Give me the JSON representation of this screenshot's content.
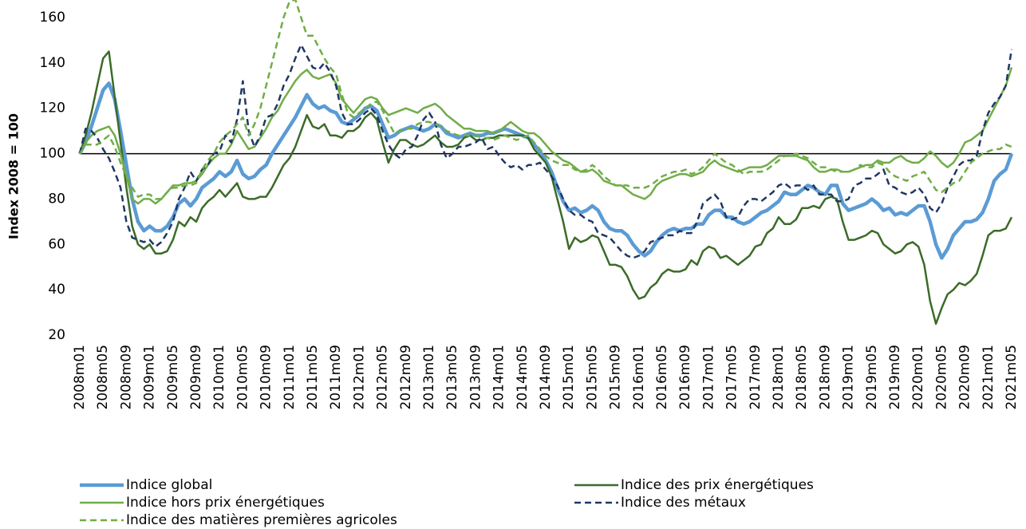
{
  "chart_data": {
    "type": "line",
    "y_label": "Index 2008 = 100",
    "categories": [
      "2008m01",
      null,
      null,
      null,
      "2008m05",
      null,
      null,
      null,
      "2008m09",
      null,
      null,
      null,
      "2009m01",
      null,
      null,
      null,
      "2009m05",
      null,
      null,
      null,
      "2009m09",
      null,
      null,
      null,
      "2010m01",
      null,
      null,
      null,
      "2010m05",
      null,
      null,
      null,
      "2010m09",
      null,
      null,
      null,
      "2011m01",
      null,
      null,
      null,
      "2011m05",
      null,
      null,
      null,
      "2011m09",
      null,
      null,
      null,
      "2012m01",
      null,
      null,
      null,
      "2012m05",
      null,
      null,
      null,
      "2012m09",
      null,
      null,
      null,
      "2013m01",
      null,
      null,
      null,
      "2013m05",
      null,
      null,
      null,
      "2013m09",
      null,
      null,
      null,
      "2014m01",
      null,
      null,
      null,
      "2014m05",
      null,
      null,
      null,
      "2014m09",
      null,
      null,
      null,
      "2015m01",
      null,
      null,
      null,
      "2015m05",
      null,
      null,
      null,
      "2015m09",
      null,
      null,
      null,
      "2016m01",
      null,
      null,
      null,
      "2016m05",
      null,
      null,
      null,
      "2016m09",
      null,
      null,
      null,
      "2017m01",
      null,
      null,
      null,
      "2017m05",
      null,
      null,
      null,
      "2017m09",
      null,
      null,
      null,
      "2018m01",
      null,
      null,
      null,
      "2018m05",
      null,
      null,
      null,
      "2018m09",
      null,
      null,
      null,
      "2019m01",
      null,
      null,
      null,
      "2019m05",
      null,
      null,
      null,
      "2019m09",
      null,
      null,
      null,
      "2020m01",
      null,
      null,
      null,
      "2020m05",
      null,
      null,
      null,
      "2020m09",
      null,
      null,
      null,
      "2021m01",
      null,
      null,
      null,
      "2021m05"
    ],
    "series": [
      {
        "name": "Indice global",
        "color": "#5b9bd5",
        "line_style": "solid",
        "line_width": 4.5,
        "values": [
          100,
          105,
          112,
          120,
          128,
          131,
          124,
          110,
          95,
          80,
          70,
          66,
          68,
          66,
          66,
          68,
          72,
          78,
          80,
          77,
          80,
          85,
          87,
          89,
          92,
          90,
          92,
          97,
          91,
          89,
          90,
          93,
          95,
          100,
          104,
          108,
          112,
          116,
          121,
          126,
          122,
          120,
          121,
          119,
          118,
          114,
          113,
          115,
          117,
          120,
          121,
          119,
          113,
          107,
          108,
          110,
          111,
          112,
          111,
          110,
          111,
          113,
          112,
          109,
          108,
          107,
          108,
          109,
          108,
          108,
          109,
          109,
          110,
          111,
          110,
          109,
          108,
          107,
          104,
          101,
          97,
          92,
          85,
          79,
          75,
          76,
          74,
          75,
          77,
          75,
          70,
          67,
          66,
          66,
          64,
          60,
          57,
          55,
          57,
          61,
          64,
          66,
          67,
          66,
          67,
          67,
          69,
          69,
          73,
          75,
          75,
          72,
          72,
          70,
          69,
          70,
          72,
          74,
          75,
          77,
          79,
          83,
          82,
          82,
          84,
          86,
          85,
          83,
          82,
          86,
          86,
          78,
          75,
          76,
          77,
          78,
          80,
          78,
          75,
          76,
          73,
          74,
          73,
          75,
          77,
          77,
          70,
          60,
          54,
          58,
          64,
          67,
          70,
          70,
          71,
          74,
          80,
          88,
          91,
          93,
          100
        ]
      },
      {
        "name": "Indice des prix énergétiques",
        "color": "#3b6b28",
        "line_style": "solid",
        "line_width": 2.5,
        "values": [
          100,
          108,
          118,
          130,
          142,
          145,
          125,
          105,
          85,
          68,
          60,
          58,
          60,
          56,
          56,
          57,
          62,
          70,
          68,
          72,
          70,
          76,
          79,
          81,
          84,
          81,
          84,
          87,
          81,
          80,
          80,
          81,
          81,
          85,
          90,
          95,
          98,
          103,
          110,
          117,
          112,
          111,
          113,
          108,
          108,
          107,
          110,
          110,
          112,
          116,
          118,
          115,
          105,
          96,
          102,
          106,
          106,
          104,
          103,
          104,
          106,
          108,
          105,
          103,
          103,
          104,
          107,
          108,
          106,
          106,
          107,
          107,
          108,
          108,
          108,
          108,
          108,
          107,
          102,
          99,
          96,
          90,
          80,
          70,
          58,
          63,
          61,
          62,
          64,
          63,
          57,
          51,
          51,
          50,
          46,
          40,
          36,
          37,
          41,
          43,
          47,
          49,
          48,
          48,
          49,
          53,
          51,
          57,
          59,
          58,
          54,
          55,
          53,
          51,
          53,
          55,
          59,
          60,
          65,
          67,
          72,
          69,
          69,
          71,
          76,
          76,
          77,
          76,
          80,
          81,
          80,
          70,
          62,
          62,
          63,
          64,
          66,
          65,
          60,
          58,
          56,
          57,
          60,
          61,
          59,
          51,
          35,
          25,
          32,
          38,
          40,
          43,
          42,
          44,
          47,
          55,
          64,
          66,
          66,
          67,
          72
        ]
      },
      {
        "name": "Indice hors prix énergétiques",
        "color": "#70ad47",
        "line_style": "solid",
        "line_width": 2.5,
        "values": [
          100,
          105,
          108,
          110,
          111,
          112,
          108,
          100,
          90,
          80,
          78,
          80,
          80,
          78,
          80,
          83,
          86,
          86,
          87,
          87,
          88,
          91,
          95,
          98,
          100,
          100,
          104,
          110,
          106,
          102,
          103,
          107,
          111,
          116,
          119,
          124,
          128,
          132,
          135,
          137,
          134,
          133,
          134,
          135,
          131,
          124,
          121,
          118,
          121,
          124,
          125,
          124,
          120,
          117,
          118,
          119,
          120,
          119,
          118,
          120,
          121,
          122,
          120,
          117,
          115,
          113,
          111,
          111,
          110,
          110,
          110,
          109,
          110,
          112,
          114,
          112,
          110,
          109,
          109,
          107,
          104,
          101,
          99,
          97,
          96,
          94,
          92,
          92,
          93,
          91,
          88,
          87,
          86,
          86,
          84,
          82,
          81,
          80,
          82,
          86,
          88,
          89,
          90,
          91,
          91,
          90,
          91,
          92,
          95,
          97,
          95,
          94,
          93,
          92,
          93,
          94,
          94,
          94,
          95,
          97,
          99,
          99,
          99,
          99,
          98,
          97,
          94,
          92,
          92,
          93,
          93,
          92,
          92,
          93,
          94,
          95,
          95,
          97,
          96,
          96,
          98,
          99,
          97,
          96,
          96,
          98,
          101,
          99,
          96,
          94,
          96,
          100,
          105,
          106,
          108,
          110,
          115,
          120,
          125,
          130,
          138
        ]
      },
      {
        "name": "Indice des métaux",
        "color": "#1f3864",
        "line_style": "dashed",
        "line_width": 2.5,
        "values": [
          100,
          111,
          110,
          107,
          102,
          98,
          92,
          85,
          70,
          63,
          62,
          61,
          62,
          59,
          61,
          65,
          70,
          80,
          85,
          92,
          88,
          93,
          95,
          100,
          101,
          108,
          105,
          115,
          132,
          110,
          103,
          108,
          116,
          117,
          122,
          130,
          135,
          142,
          148,
          143,
          138,
          137,
          140,
          136,
          130,
          118,
          113,
          113,
          115,
          118,
          120,
          117,
          110,
          104,
          100,
          98,
          102,
          103,
          108,
          115,
          118,
          114,
          104,
          98,
          100,
          103,
          103,
          104,
          105,
          107,
          102,
          103,
          99,
          96,
          94,
          95,
          93,
          95,
          95,
          96,
          93,
          90,
          86,
          80,
          75,
          73,
          73,
          71,
          70,
          65,
          64,
          63,
          60,
          57,
          55,
          54,
          55,
          57,
          61,
          62,
          63,
          64,
          64,
          66,
          65,
          65,
          70,
          78,
          80,
          82,
          79,
          72,
          71,
          72,
          77,
          80,
          80,
          79,
          81,
          83,
          86,
          87,
          85,
          86,
          86,
          84,
          86,
          82,
          82,
          82,
          79,
          79,
          80,
          86,
          87,
          89,
          89,
          91,
          93,
          86,
          85,
          83,
          82,
          83,
          85,
          82,
          76,
          74,
          78,
          85,
          90,
          95,
          97,
          97,
          99,
          110,
          118,
          122,
          125,
          130,
          146
        ]
      },
      {
        "name": "Indice des matières premières agricoles",
        "color": "#70ad47",
        "line_style": "dashed",
        "line_width": 2.5,
        "values": [
          100,
          104,
          104,
          104,
          106,
          108,
          103,
          96,
          90,
          85,
          81,
          82,
          82,
          80,
          80,
          83,
          85,
          85,
          86,
          86,
          87,
          93,
          97,
          100,
          105,
          108,
          110,
          113,
          116,
          108,
          113,
          120,
          130,
          140,
          150,
          160,
          167,
          168,
          160,
          152,
          152,
          147,
          142,
          138,
          135,
          126,
          118,
          116,
          118,
          120,
          122,
          123,
          119,
          114,
          109,
          110,
          111,
          111,
          113,
          114,
          114,
          113,
          112,
          110,
          109,
          108,
          108,
          108,
          108,
          107,
          107,
          106,
          107,
          108,
          107,
          106,
          107,
          108,
          105,
          102,
          99,
          97,
          96,
          95,
          95,
          93,
          92,
          93,
          95,
          93,
          90,
          88,
          86,
          86,
          86,
          85,
          85,
          85,
          86,
          88,
          90,
          91,
          92,
          92,
          93,
          91,
          92,
          94,
          97,
          100,
          98,
          96,
          95,
          93,
          91,
          92,
          92,
          92,
          93,
          95,
          97,
          99,
          99,
          100,
          99,
          98,
          96,
          94,
          94,
          93,
          92,
          92,
          92,
          93,
          95,
          94,
          94,
          96,
          95,
          92,
          90,
          89,
          88,
          90,
          91,
          92,
          88,
          84,
          83,
          85,
          87,
          88,
          92,
          96,
          98,
          100,
          101,
          102,
          102,
          104,
          103
        ]
      }
    ],
    "ylim": [
      20,
      160
    ],
    "yticks": [
      20,
      40,
      60,
      80,
      100,
      120,
      140,
      160
    ],
    "reference_line": 100,
    "grid": false
  }
}
